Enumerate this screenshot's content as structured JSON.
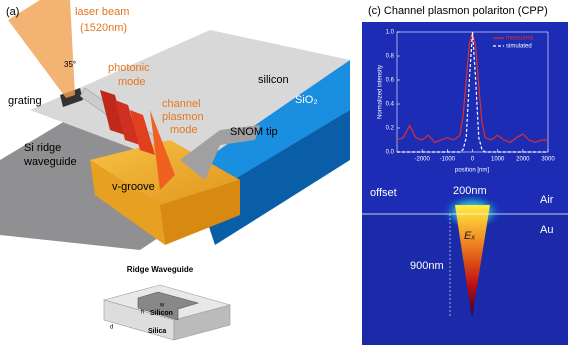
{
  "panel_a": {
    "label": "(a)",
    "laser": "laser beam",
    "wavelength": "(1520nm)",
    "angle": "35°",
    "photonic": [
      "photonic",
      "mode"
    ],
    "silicon": "silicon",
    "sio2": "SiO₂",
    "grating": "grating",
    "channel": [
      "channel",
      "plasmon",
      "mode"
    ],
    "ridge": [
      "Si ridge",
      "waveguide"
    ],
    "snom": "SNOM tip",
    "vgroove": "v-groove"
  },
  "panel_b": {
    "title": "Ridge Waveguide",
    "w": "w",
    "h": "h",
    "silicon": "Silicon",
    "d": "d",
    "silica": "Silica"
  },
  "panel_c": {
    "title": "(c)  Channel plasmon polariton (CPP)",
    "offset": "offset",
    "width": "200nm",
    "air": "Air",
    "au": "Au",
    "field": "Eₓ",
    "depth": "900nm"
  },
  "chart_data": {
    "type": "line",
    "ylabel": "Normalized intensity",
    "xlabel": "position [nm]",
    "x": [
      -3000,
      -2750,
      -2500,
      -2250,
      -2000,
      -1750,
      -1500,
      -1250,
      -1000,
      -750,
      -500,
      -375,
      -250,
      -125,
      0,
      125,
      250,
      375,
      500,
      750,
      1000,
      1250,
      1500,
      1750,
      2000,
      2250,
      2500,
      2750,
      3000
    ],
    "series": [
      {
        "name": "measured",
        "color": "#e0302a",
        "dash": false,
        "values": [
          0.1,
          0.12,
          0.22,
          0.12,
          0.1,
          0.14,
          0.08,
          0.1,
          0.12,
          0.1,
          0.14,
          0.3,
          0.6,
          0.9,
          1.0,
          0.88,
          0.55,
          0.25,
          0.12,
          0.1,
          0.14,
          0.1,
          0.08,
          0.12,
          0.15,
          0.1,
          0.08,
          0.1,
          0.1
        ]
      },
      {
        "name": "simulated",
        "color": "#ffffff",
        "dash": true,
        "values": [
          0,
          0,
          0,
          0,
          0,
          0,
          0,
          0,
          0,
          0,
          0,
          0.02,
          0.12,
          0.6,
          1.0,
          0.6,
          0.12,
          0.02,
          0,
          0,
          0,
          0,
          0,
          0,
          0,
          0,
          0,
          0,
          0
        ]
      }
    ],
    "xlim": [
      -3000,
      3000
    ],
    "xticks": [
      -2000,
      -1000,
      0,
      1000,
      2000,
      3000
    ],
    "ylim": [
      0,
      1.0
    ],
    "yticks": [
      {
        "value": 0,
        "label": "0.0"
      },
      {
        "value": 0.2,
        "label": "0.2"
      },
      {
        "value": 0.4,
        "label": "0.4"
      },
      {
        "value": 0.6,
        "label": "0.6"
      },
      {
        "value": 0.8,
        "label": "0.8"
      },
      {
        "value": 1.0,
        "label": "1.0"
      }
    ]
  }
}
